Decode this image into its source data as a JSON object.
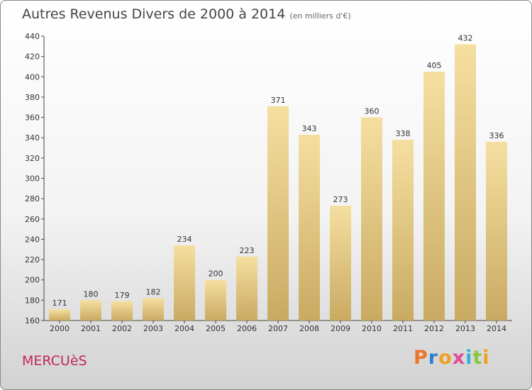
{
  "header": {
    "title": "Autres Revenus Divers de 2000 à 2014",
    "unit": "(en milliers d'€)"
  },
  "footer": {
    "commune": "MERCUèS",
    "brand": "Proxiti"
  },
  "colors": {
    "bar_top": "#f5dfa0",
    "bar_bottom": "#c9aa62",
    "commune": "#c0285a",
    "brand_letters": [
      "#e9752b",
      "#2f7fd0",
      "#f0a020",
      "#e04b9a",
      "#34b0d8",
      "#8cc63f",
      "#f0a020"
    ]
  },
  "chart_data": {
    "type": "bar",
    "title": "Autres Revenus Divers de 2000 à 2014",
    "categories": [
      "2000",
      "2001",
      "2002",
      "2003",
      "2004",
      "2005",
      "2006",
      "2007",
      "2008",
      "2009",
      "2010",
      "2011",
      "2012",
      "2013",
      "2014"
    ],
    "values": [
      171,
      180,
      179,
      182,
      234,
      200,
      223,
      371,
      343,
      273,
      360,
      338,
      405,
      432,
      336
    ],
    "ylim": [
      160,
      440
    ],
    "yticks": [
      160,
      180,
      200,
      220,
      240,
      260,
      280,
      300,
      320,
      340,
      360,
      380,
      400,
      420,
      440
    ],
    "grid": false
  }
}
